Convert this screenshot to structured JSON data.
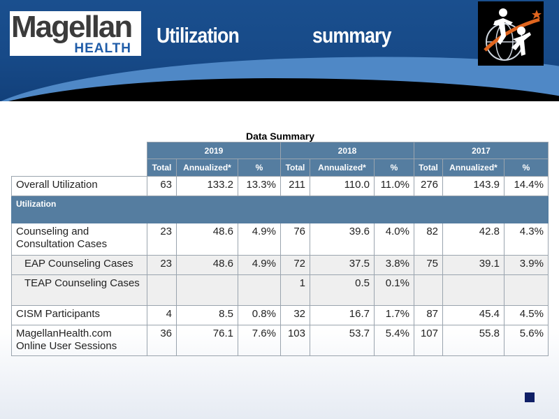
{
  "brand": {
    "logo_word": "Magellan",
    "logo_sub": "HEALTH",
    "primary_color": "#1a4f8e",
    "table_header_color": "#557da0",
    "accent_color": "#e0651e"
  },
  "slide": {
    "title_left": "Utilization",
    "title_right": "summary"
  },
  "table": {
    "caption": "Data Summary",
    "years": [
      "2019",
      "2018",
      "2017"
    ],
    "subheaders": [
      "Total",
      "Annualized*",
      "%"
    ],
    "rows": {
      "overall": {
        "label": "Overall Utilization",
        "values": [
          "63",
          "133.2",
          "13.3%",
          "211",
          "110.0",
          "11.0%",
          "276",
          "143.9",
          "14.4%"
        ]
      },
      "section_label": "Utilization",
      "counseling": {
        "label": "Counseling and Consultation Cases",
        "values": [
          "23",
          "48.6",
          "4.9%",
          "76",
          "39.6",
          "4.0%",
          "82",
          "42.8",
          "4.3%"
        ]
      },
      "eap": {
        "label": "EAP Counseling Cases",
        "values": [
          "23",
          "48.6",
          "4.9%",
          "72",
          "37.5",
          "3.8%",
          "75",
          "39.1",
          "3.9%"
        ]
      },
      "teap": {
        "label": "TEAP Counseling Cases",
        "values": [
          "",
          "",
          "",
          "1",
          "0.5",
          "0.1%",
          "",
          "",
          ""
        ]
      },
      "cism": {
        "label": "CISM Participants",
        "values": [
          "4",
          "8.5",
          "0.8%",
          "32",
          "16.7",
          "1.7%",
          "87",
          "45.4",
          "4.5%"
        ]
      },
      "online": {
        "label": "MagellanHealth.com Online User Sessions",
        "values": [
          "36",
          "76.1",
          "7.6%",
          "103",
          "53.7",
          "5.4%",
          "107",
          "55.8",
          "5.6%"
        ]
      }
    }
  },
  "icons": {
    "emblem": "people-globe-emblem",
    "footer": "square-icon"
  }
}
